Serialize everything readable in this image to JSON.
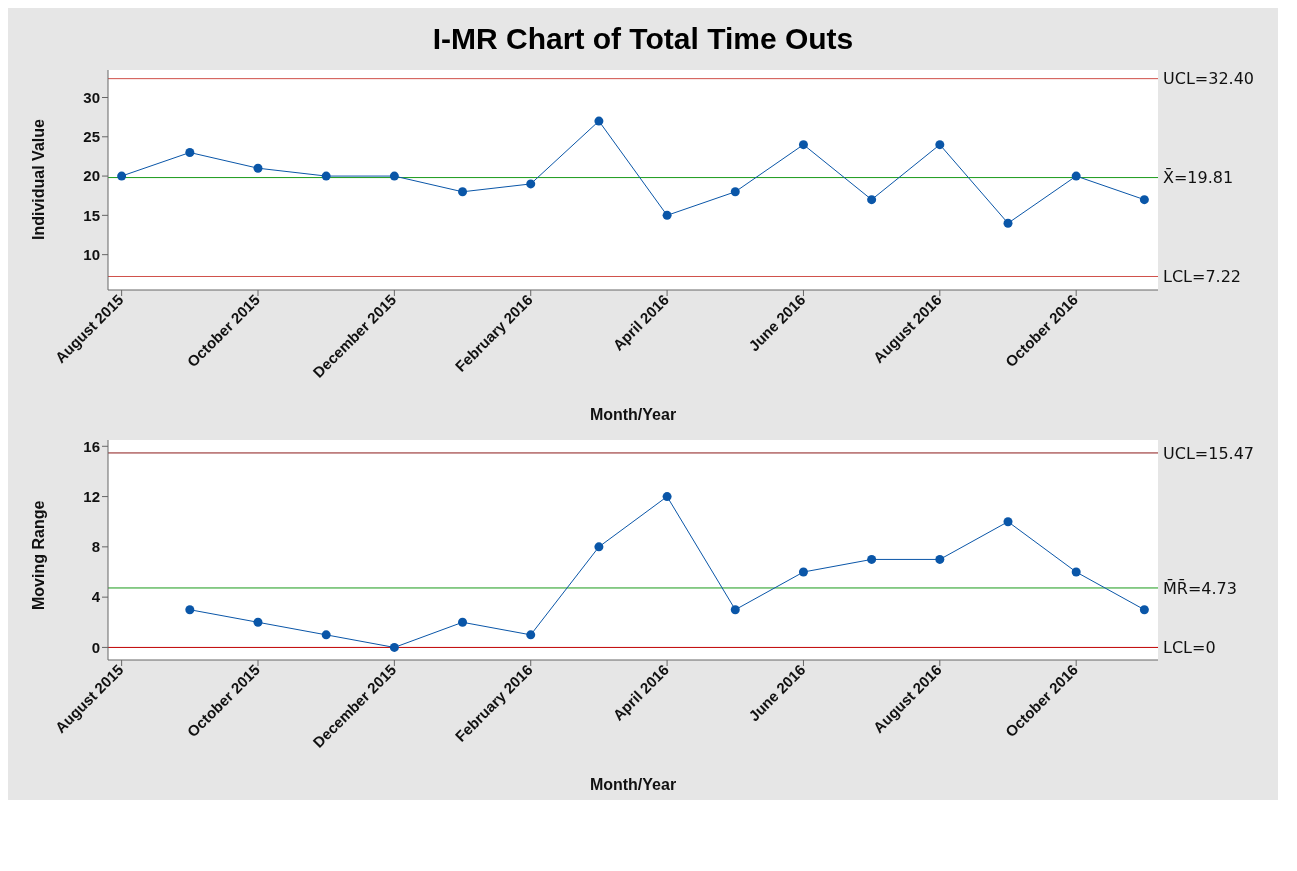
{
  "chart_data": [
    {
      "type": "line",
      "title": "I-MR Chart of Total Time Outs",
      "xlabel": "Month/Year",
      "ylabel": "Individual Value",
      "categories": [
        "August 2015",
        null,
        "October 2015",
        null,
        "December 2015",
        null,
        "February 2016",
        null,
        "April 2016",
        null,
        "June 2016",
        null,
        "August 2016",
        null,
        "October 2016",
        null
      ],
      "values": [
        20,
        23,
        21,
        20,
        20,
        18,
        19,
        27,
        15,
        18,
        24,
        17,
        24,
        14,
        20,
        17
      ],
      "color": "#0a56a8",
      "marker": "circle",
      "line_style": "solid",
      "ylim": [
        5.5,
        33.5
      ],
      "yticks": [
        10,
        15,
        20,
        25,
        30
      ],
      "grid": false,
      "legend": false,
      "ref_lines": [
        {
          "axis": "y",
          "value": 32.4,
          "label": "UCL=32.40",
          "color": "#d0504a"
        },
        {
          "axis": "y",
          "value": 19.81,
          "label": "X̄=19.81",
          "color": "#1a9a1a"
        },
        {
          "axis": "y",
          "value": 7.22,
          "label": "LCL=7.22",
          "color": "#d0504a"
        }
      ]
    },
    {
      "type": "line",
      "xlabel": "Month/Year",
      "ylabel": "Moving Range",
      "categories": [
        "August 2015",
        null,
        "October 2015",
        null,
        "December 2015",
        null,
        "February 2016",
        null,
        "April 2016",
        null,
        "June 2016",
        null,
        "August 2016",
        null,
        "October 2016",
        null
      ],
      "values": [
        null,
        3,
        2,
        1,
        0,
        2,
        1,
        8,
        12,
        3,
        6,
        7,
        7,
        10,
        6,
        3
      ],
      "color": "#0a56a8",
      "marker": "circle",
      "line_style": "solid",
      "ylim": [
        -1,
        16.5
      ],
      "yticks": [
        0,
        4,
        8,
        12,
        16
      ],
      "grid": false,
      "legend": false,
      "ref_lines": [
        {
          "axis": "y",
          "value": 15.47,
          "label": "UCL=15.47",
          "color": "#8b1a1a"
        },
        {
          "axis": "y",
          "value": 4.73,
          "label": "M̄R̄=4.73",
          "color": "#1a9a1a"
        },
        {
          "axis": "y",
          "value": 0,
          "label": "LCL=0",
          "color": "#c00000"
        }
      ]
    }
  ]
}
